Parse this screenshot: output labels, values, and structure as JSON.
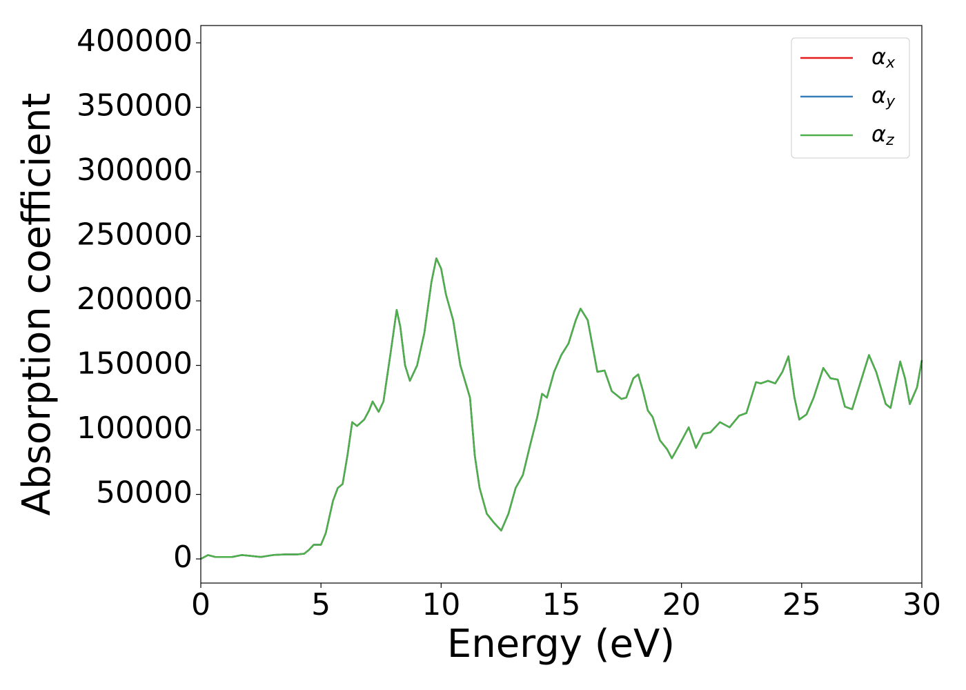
{
  "chart_data": {
    "type": "line",
    "x_label": "Energy (eV)",
    "y_label": "Absorption coefficient",
    "xlim": [
      0,
      30
    ],
    "ylim": [
      -18700,
      413400
    ],
    "xticks": [
      0,
      5,
      10,
      15,
      20,
      25,
      30
    ],
    "yticks": [
      0,
      50000,
      100000,
      150000,
      200000,
      250000,
      300000,
      350000,
      400000
    ],
    "legend": "upper right",
    "x": [
      0,
      0.3,
      0.6,
      1.0,
      1.3,
      1.7,
      2.0,
      2.5,
      3.0,
      3.5,
      4.0,
      4.3,
      4.5,
      4.7,
      5.0,
      5.2,
      5.5,
      5.7,
      5.9,
      6.1,
      6.3,
      6.5,
      6.8,
      7.0,
      7.15,
      7.4,
      7.6,
      7.9,
      8.15,
      8.3,
      8.5,
      8.7,
      9.0,
      9.3,
      9.6,
      9.8,
      10.0,
      10.2,
      10.5,
      10.8,
      11.2,
      11.4,
      11.6,
      11.9,
      12.2,
      12.5,
      12.8,
      13.1,
      13.4,
      13.7,
      14.0,
      14.2,
      14.4,
      14.7,
      15.0,
      15.3,
      15.6,
      15.8,
      16.1,
      16.3,
      16.5,
      16.8,
      17.1,
      17.5,
      17.7,
      18.0,
      18.2,
      18.4,
      18.6,
      18.8,
      19.1,
      19.4,
      19.6,
      19.9,
      20.3,
      20.6,
      20.9,
      21.2,
      21.6,
      22.0,
      22.4,
      22.7,
      23.1,
      23.3,
      23.6,
      23.9,
      24.2,
      24.45,
      24.7,
      24.9,
      25.2,
      25.5,
      25.9,
      26.2,
      26.5,
      26.8,
      27.1,
      27.5,
      27.8,
      28.1,
      28.5,
      28.7,
      29.1,
      29.3,
      29.5,
      29.8,
      30.0
    ],
    "series": [
      {
        "name": "αx",
        "color": "#e41a1c",
        "values": [
          0,
          3000,
          1500,
          1500,
          1500,
          3000,
          2500,
          1500,
          3000,
          3500,
          3500,
          4000,
          7000,
          11000,
          11000,
          20000,
          45000,
          55000,
          58000,
          80000,
          106000,
          103000,
          108000,
          115000,
          122000,
          114000,
          122000,
          160000,
          193000,
          180000,
          150000,
          138000,
          150000,
          175000,
          215000,
          233000,
          225000,
          205000,
          185000,
          150000,
          125000,
          80000,
          55000,
          35000,
          28000,
          22000,
          35000,
          55000,
          65000,
          88000,
          110000,
          128000,
          125000,
          145000,
          158000,
          167000,
          185000,
          194000,
          185000,
          165000,
          145000,
          146000,
          130000,
          124000,
          125000,
          140000,
          143000,
          130000,
          115000,
          110000,
          92000,
          85000,
          78000,
          88000,
          102000,
          86000,
          97000,
          98000,
          106000,
          102000,
          111000,
          113000,
          137000,
          136000,
          138000,
          136000,
          145000,
          157000,
          125000,
          108000,
          112000,
          125000,
          148000,
          140000,
          139000,
          118000,
          116000,
          140000,
          158000,
          145000,
          120000,
          117000,
          153000,
          140000,
          120000,
          133000,
          154000
        ]
      },
      {
        "name": "αy",
        "color": "#377eb8",
        "values": [
          0,
          3000,
          1500,
          1500,
          1500,
          3000,
          2500,
          1500,
          3000,
          3500,
          3500,
          4000,
          7000,
          11000,
          11000,
          20000,
          45000,
          55000,
          58000,
          80000,
          106000,
          103000,
          108000,
          115000,
          122000,
          114000,
          122000,
          160000,
          193000,
          180000,
          150000,
          138000,
          150000,
          175000,
          215000,
          233000,
          225000,
          205000,
          185000,
          150000,
          125000,
          80000,
          55000,
          35000,
          28000,
          22000,
          35000,
          55000,
          65000,
          88000,
          110000,
          128000,
          125000,
          145000,
          158000,
          167000,
          185000,
          194000,
          185000,
          165000,
          145000,
          146000,
          130000,
          124000,
          125000,
          140000,
          143000,
          130000,
          115000,
          110000,
          92000,
          85000,
          78000,
          88000,
          102000,
          86000,
          97000,
          98000,
          106000,
          102000,
          111000,
          113000,
          137000,
          136000,
          138000,
          136000,
          145000,
          157000,
          125000,
          108000,
          112000,
          125000,
          148000,
          140000,
          139000,
          118000,
          116000,
          140000,
          158000,
          145000,
          120000,
          117000,
          153000,
          140000,
          120000,
          133000,
          154000
        ]
      },
      {
        "name": "αz",
        "color": "#4daf4a",
        "values": [
          0,
          3000,
          1500,
          1500,
          1500,
          3000,
          2500,
          1500,
          3000,
          3500,
          3500,
          4000,
          7000,
          11000,
          11000,
          20000,
          45000,
          55000,
          58000,
          80000,
          106000,
          103000,
          108000,
          115000,
          122000,
          114000,
          122000,
          160000,
          193000,
          180000,
          150000,
          138000,
          150000,
          175000,
          215000,
          233000,
          225000,
          205000,
          185000,
          150000,
          125000,
          80000,
          55000,
          35000,
          28000,
          22000,
          35000,
          55000,
          65000,
          88000,
          110000,
          128000,
          125000,
          145000,
          158000,
          167000,
          185000,
          194000,
          185000,
          165000,
          145000,
          146000,
          130000,
          124000,
          125000,
          140000,
          143000,
          130000,
          115000,
          110000,
          92000,
          85000,
          78000,
          88000,
          102000,
          86000,
          97000,
          98000,
          106000,
          102000,
          111000,
          113000,
          137000,
          136000,
          138000,
          136000,
          145000,
          157000,
          125000,
          108000,
          112000,
          125000,
          148000,
          140000,
          139000,
          118000,
          116000,
          140000,
          158000,
          145000,
          120000,
          117000,
          153000,
          140000,
          120000,
          133000,
          154000
        ]
      }
    ]
  }
}
